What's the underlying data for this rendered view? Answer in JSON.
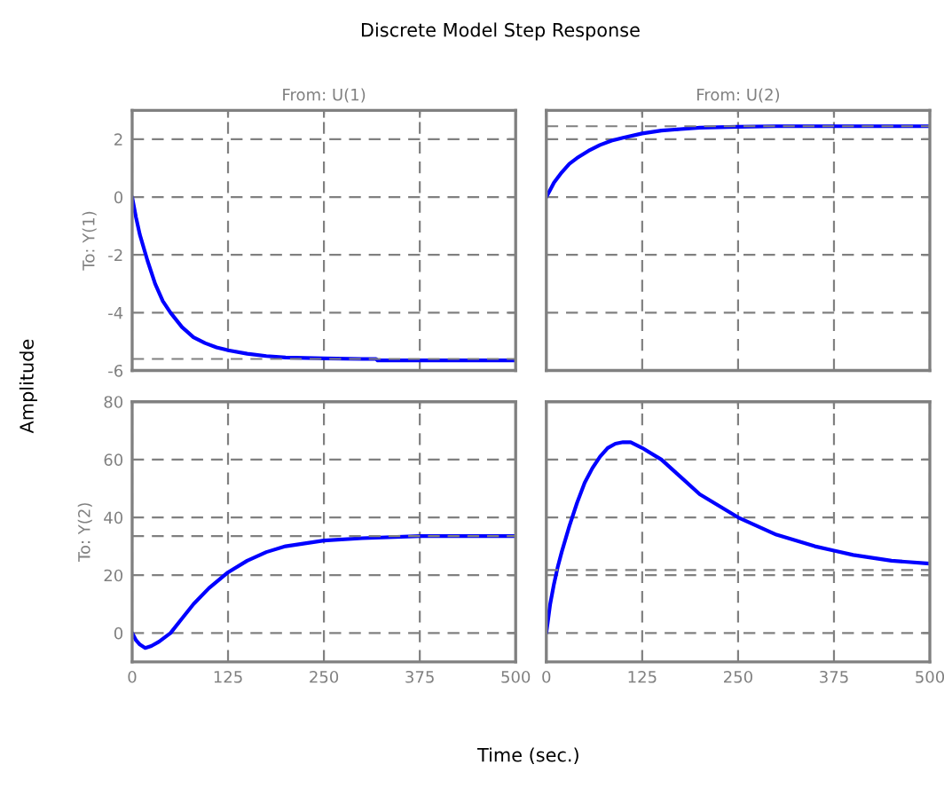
{
  "chart_data": [
    {
      "type": "line",
      "title": "From: U(1)",
      "ylabel": "To: Y(1)",
      "annotations": [
        "Discrete Model Step Response",
        "Amplitude",
        "Time (sec.)"
      ],
      "x": [
        0,
        5,
        10,
        20,
        30,
        40,
        50,
        65,
        80,
        95,
        110,
        125,
        150,
        175,
        200,
        250,
        300,
        318,
        320,
        400,
        500
      ],
      "series": [
        {
          "color": "#0000ff",
          "values": [
            0,
            -0.7,
            -1.3,
            -2.2,
            -3.0,
            -3.6,
            -4.0,
            -4.5,
            -4.85,
            -5.05,
            -5.2,
            -5.3,
            -5.42,
            -5.5,
            -5.55,
            -5.58,
            -5.6,
            -5.6,
            -5.65,
            -5.65,
            -5.65
          ]
        }
      ],
      "xlim": [
        0,
        500
      ],
      "xticks": [
        0,
        125,
        250,
        375,
        500
      ],
      "ylim": [
        -6,
        3
      ],
      "yticks": [
        -6,
        -4,
        -2,
        0,
        2
      ],
      "tick_labels": "y",
      "grid": true,
      "ref_lines": [
        {
          "axis": "y",
          "value": -5.6,
          "color": "#808080",
          "line_style": "dashed"
        }
      ]
    },
    {
      "type": "line",
      "title": "From: U(2)",
      "x": [
        0,
        5,
        10,
        20,
        30,
        40,
        55,
        70,
        85,
        100,
        125,
        150,
        175,
        200,
        250,
        300,
        400,
        500
      ],
      "series": [
        {
          "color": "#0000ff",
          "values": [
            0,
            0.25,
            0.5,
            0.85,
            1.15,
            1.35,
            1.6,
            1.8,
            1.95,
            2.05,
            2.2,
            2.3,
            2.35,
            2.4,
            2.43,
            2.45,
            2.45,
            2.45
          ]
        }
      ],
      "xlim": [
        0,
        500
      ],
      "xticks": [
        0,
        125,
        250,
        375,
        500
      ],
      "ylim": [
        -6,
        3
      ],
      "yticks": [
        -6,
        -4,
        -2,
        0,
        2
      ],
      "tick_labels": false,
      "grid": true,
      "ref_lines": [
        {
          "axis": "y",
          "value": 2.45,
          "color": "#808080",
          "line_style": "dashed"
        }
      ]
    },
    {
      "type": "line",
      "ylabel": "To: Y(2)",
      "x": [
        0,
        5,
        10,
        17,
        25,
        35,
        50,
        65,
        80,
        100,
        125,
        150,
        175,
        200,
        225,
        250,
        300,
        375,
        450,
        500
      ],
      "series": [
        {
          "color": "#0000ff",
          "values": [
            0,
            -2.5,
            -4,
            -5.2,
            -4.5,
            -3,
            0,
            5,
            10,
            15.5,
            21,
            25,
            28,
            30,
            31,
            32,
            32.8,
            33.5,
            33.5,
            33.5
          ]
        }
      ],
      "xlim": [
        0,
        500
      ],
      "xticks": [
        0,
        125,
        250,
        375,
        500
      ],
      "ylim": [
        -10,
        80
      ],
      "yticks": [
        0,
        20,
        40,
        60,
        80
      ],
      "grid": true,
      "ref_lines": [
        {
          "axis": "y",
          "value": 33.5,
          "color": "#808080",
          "line_style": "dashed"
        }
      ]
    },
    {
      "type": "line",
      "x": [
        0,
        5,
        10,
        15,
        20,
        30,
        40,
        50,
        60,
        70,
        80,
        90,
        100,
        110,
        125,
        150,
        175,
        200,
        250,
        300,
        350,
        375,
        400,
        450,
        500
      ],
      "series": [
        {
          "color": "#0000ff",
          "values": [
            0,
            10,
            17,
            23,
            28,
            37,
            45,
            52,
            57,
            61,
            64,
            65.5,
            66,
            66,
            64,
            60,
            54,
            48,
            40,
            34,
            30,
            28.5,
            27,
            25,
            24
          ]
        }
      ],
      "xlim": [
        0,
        500
      ],
      "xticks": [
        0,
        125,
        250,
        375,
        500
      ],
      "ylim": [
        -10,
        80
      ],
      "yticks": [
        0,
        20,
        40,
        60,
        80
      ],
      "tick_labels": "x",
      "grid": true,
      "ref_lines": [
        {
          "axis": "y",
          "value": 21.8,
          "color": "#808080",
          "line_style": "dashed"
        }
      ]
    }
  ]
}
